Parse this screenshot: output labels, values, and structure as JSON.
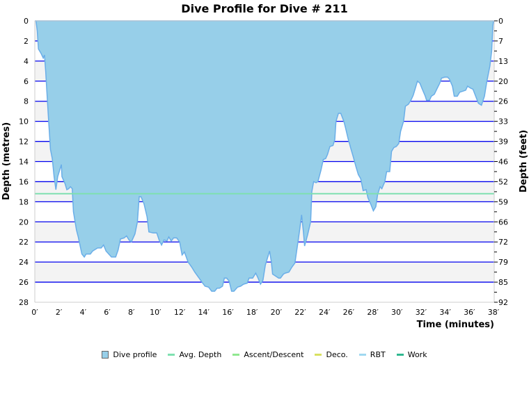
{
  "chart_data": {
    "type": "area",
    "title": "Dive Profile for Dive # 211",
    "xlabel": "Time (minutes)",
    "ylabel": "Depth (metres)",
    "ylabel_right": "Depth (feet)",
    "xlim": [
      0,
      38
    ],
    "ylim": [
      0,
      28
    ],
    "y_inverted": true,
    "x_ticks": [
      "0′",
      "2′",
      "4′",
      "6′",
      "8′",
      "10′",
      "12′",
      "14′",
      "16′",
      "18′",
      "20′",
      "22′",
      "24′",
      "26′",
      "28′",
      "30′",
      "32′",
      "34′",
      "36′",
      "38′"
    ],
    "y_ticks": [
      "0",
      "2",
      "4",
      "6",
      "8",
      "10",
      "12",
      "14",
      "16",
      "18",
      "20",
      "22",
      "24",
      "26",
      "28"
    ],
    "y_right_ticks": [
      "0",
      "7",
      "13",
      "20",
      "26",
      "33",
      "39",
      "46",
      "52",
      "59",
      "66",
      "72",
      "79",
      "85",
      "92"
    ],
    "grid": true,
    "avg_depth": 17.2,
    "colors": {
      "profile_fill": "#97cfe9",
      "profile_line": "#6aaee8",
      "grid": "#0000ee",
      "band": "#f3f3f3",
      "avg": "#7ee0b0"
    },
    "series": [
      {
        "name": "Dive profile",
        "points": [
          [
            0,
            0
          ],
          [
            0.1,
            0
          ],
          [
            0.2,
            1
          ],
          [
            0.3,
            2.8
          ],
          [
            0.5,
            3.2
          ],
          [
            0.7,
            3.7
          ],
          [
            0.8,
            3.4
          ],
          [
            0.9,
            5
          ],
          [
            1.0,
            7
          ],
          [
            1.15,
            10
          ],
          [
            1.3,
            12.8
          ],
          [
            1.45,
            13.7
          ],
          [
            1.6,
            15.5
          ],
          [
            1.75,
            16.8
          ],
          [
            1.9,
            15.5
          ],
          [
            2.2,
            14.3
          ],
          [
            2.25,
            15.5
          ],
          [
            2.5,
            16.2
          ],
          [
            2.65,
            16.8
          ],
          [
            2.8,
            16.7
          ],
          [
            2.95,
            16.5
          ],
          [
            3.1,
            16.7
          ],
          [
            3.2,
            19
          ],
          [
            3.45,
            20.8
          ],
          [
            3.6,
            21.5
          ],
          [
            3.9,
            23.2
          ],
          [
            4.1,
            23.5
          ],
          [
            4.25,
            23.2
          ],
          [
            4.6,
            23.2
          ],
          [
            4.8,
            22.9
          ],
          [
            5.2,
            22.6
          ],
          [
            5.5,
            22.6
          ],
          [
            5.7,
            22.3
          ],
          [
            5.9,
            22.9
          ],
          [
            6.2,
            23.3
          ],
          [
            6.35,
            23.5
          ],
          [
            6.7,
            23.5
          ],
          [
            6.9,
            22.8
          ],
          [
            7.1,
            21.7
          ],
          [
            7.4,
            21.6
          ],
          [
            7.6,
            21.4
          ],
          [
            7.8,
            21.8
          ],
          [
            8.0,
            22
          ],
          [
            8.3,
            21.2
          ],
          [
            8.5,
            20
          ],
          [
            8.65,
            17.5
          ],
          [
            8.8,
            17.5
          ],
          [
            9.05,
            18.2
          ],
          [
            9.3,
            19.5
          ],
          [
            9.45,
            21
          ],
          [
            9.8,
            21.1
          ],
          [
            10.1,
            21.1
          ],
          [
            10.3,
            21.8
          ],
          [
            10.5,
            22.3
          ],
          [
            10.7,
            21.8
          ],
          [
            10.95,
            21.9
          ],
          [
            11.1,
            21.5
          ],
          [
            11.3,
            21.9
          ],
          [
            11.5,
            21.6
          ],
          [
            11.75,
            21.6
          ],
          [
            12.0,
            22.0
          ],
          [
            12.2,
            23.3
          ],
          [
            12.4,
            23.0
          ],
          [
            12.7,
            24
          ],
          [
            13.0,
            24.5
          ],
          [
            13.25,
            25
          ],
          [
            13.55,
            25.5
          ],
          [
            13.85,
            26
          ],
          [
            14.1,
            26.4
          ],
          [
            14.4,
            26.5
          ],
          [
            14.65,
            26.9
          ],
          [
            14.9,
            26.9
          ],
          [
            15.1,
            26.6
          ],
          [
            15.3,
            26.6
          ],
          [
            15.55,
            26.4
          ],
          [
            15.7,
            25.6
          ],
          [
            15.9,
            25.6
          ],
          [
            16.1,
            25.9
          ],
          [
            16.3,
            26.9
          ],
          [
            16.5,
            26.9
          ],
          [
            16.8,
            26.5
          ],
          [
            17.05,
            26.4
          ],
          [
            17.3,
            26.2
          ],
          [
            17.6,
            26.1
          ],
          [
            17.75,
            25.6
          ],
          [
            18.05,
            25.6
          ],
          [
            18.3,
            25.1
          ],
          [
            18.5,
            25.6
          ],
          [
            18.7,
            26.2
          ],
          [
            18.9,
            25.8
          ],
          [
            19.1,
            24.3
          ],
          [
            19.3,
            23.5
          ],
          [
            19.45,
            22.9
          ],
          [
            19.6,
            24.0
          ],
          [
            19.7,
            25.2
          ],
          [
            19.95,
            25.4
          ],
          [
            20.2,
            25.6
          ],
          [
            20.35,
            25.6
          ],
          [
            20.6,
            25.2
          ],
          [
            20.75,
            25.1
          ],
          [
            21.05,
            25
          ],
          [
            21.3,
            24.5
          ],
          [
            21.55,
            24.1
          ],
          [
            21.8,
            22
          ],
          [
            21.95,
            20.7
          ],
          [
            22.1,
            19.3
          ],
          [
            22.25,
            21
          ],
          [
            22.35,
            22.4
          ],
          [
            22.6,
            21.3
          ],
          [
            22.85,
            20
          ],
          [
            22.95,
            17
          ],
          [
            23.1,
            16
          ],
          [
            23.3,
            16.1
          ],
          [
            23.45,
            16
          ],
          [
            23.7,
            14.9
          ],
          [
            23.9,
            13.8
          ],
          [
            24.1,
            13.7
          ],
          [
            24.25,
            13.3
          ],
          [
            24.45,
            12.5
          ],
          [
            24.7,
            12.4
          ],
          [
            24.85,
            11.8
          ],
          [
            24.95,
            10
          ],
          [
            25.15,
            9.2
          ],
          [
            25.35,
            9.2
          ],
          [
            25.6,
            10
          ],
          [
            25.75,
            10.7
          ],
          [
            25.95,
            11.7
          ],
          [
            26.2,
            12.8
          ],
          [
            26.4,
            13.6
          ],
          [
            26.6,
            14.5
          ],
          [
            26.8,
            15.3
          ],
          [
            27.0,
            15.7
          ],
          [
            27.2,
            16.9
          ],
          [
            27.45,
            16.8
          ],
          [
            27.6,
            17.6
          ],
          [
            27.85,
            18.3
          ],
          [
            28.05,
            18.9
          ],
          [
            28.25,
            18.5
          ],
          [
            28.4,
            17.3
          ],
          [
            28.6,
            16.5
          ],
          [
            28.75,
            16.7
          ],
          [
            29.0,
            16
          ],
          [
            29.15,
            15
          ],
          [
            29.4,
            15
          ],
          [
            29.55,
            13
          ],
          [
            29.75,
            12.6
          ],
          [
            29.95,
            12.5
          ],
          [
            30.15,
            12.2
          ],
          [
            30.3,
            11
          ],
          [
            30.55,
            10
          ],
          [
            30.7,
            8.5
          ],
          [
            30.95,
            8.3
          ],
          [
            31.2,
            7.8
          ],
          [
            31.35,
            7.4
          ],
          [
            31.5,
            6.8
          ],
          [
            31.7,
            6
          ],
          [
            31.9,
            6.2
          ],
          [
            32.1,
            6.8
          ],
          [
            32.35,
            7.5
          ],
          [
            32.45,
            7.9
          ],
          [
            32.7,
            7.9
          ],
          [
            32.85,
            7.5
          ],
          [
            33.1,
            7.3
          ],
          [
            33.3,
            6.8
          ],
          [
            33.55,
            6.2
          ],
          [
            33.7,
            5.7
          ],
          [
            33.95,
            5.6
          ],
          [
            34.2,
            5.6
          ],
          [
            34.35,
            5.8
          ],
          [
            34.6,
            6.5
          ],
          [
            34.75,
            7.5
          ],
          [
            35.0,
            7.5
          ],
          [
            35.2,
            7.1
          ],
          [
            35.45,
            7.0
          ],
          [
            35.7,
            6.9
          ],
          [
            35.85,
            6.5
          ],
          [
            36.1,
            6.7
          ],
          [
            36.3,
            6.8
          ],
          [
            36.55,
            7.6
          ],
          [
            36.75,
            8.2
          ],
          [
            37.0,
            8.4
          ],
          [
            37.25,
            7.5
          ],
          [
            37.45,
            6.0
          ],
          [
            37.7,
            4.5
          ],
          [
            37.85,
            3
          ],
          [
            37.95,
            0.5
          ],
          [
            38.0,
            0
          ]
        ]
      }
    ],
    "legend": {
      "placement": "bottom",
      "entries": [
        {
          "label": "Dive profile",
          "color": "#97cfe9",
          "kind": "box"
        },
        {
          "label": "Avg. Depth",
          "color": "#7ee0b0",
          "kind": "line"
        },
        {
          "label": "Ascent/Descent",
          "color": "#90e890",
          "kind": "line"
        },
        {
          "label": "Deco.",
          "color": "#d8e060",
          "kind": "line"
        },
        {
          "label": "RBT",
          "color": "#a0d8f0",
          "kind": "line"
        },
        {
          "label": "Work",
          "color": "#30b890",
          "kind": "line"
        }
      ]
    }
  }
}
